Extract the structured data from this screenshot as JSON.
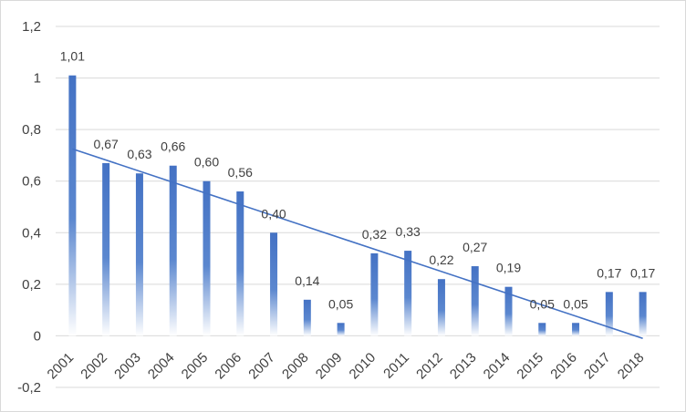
{
  "chart_data": {
    "type": "bar",
    "categories": [
      "2001",
      "2002",
      "2003",
      "2004",
      "2005",
      "2006",
      "2007",
      "2008",
      "2009",
      "2010",
      "2011",
      "2012",
      "2013",
      "2014",
      "2015",
      "2016",
      "2017",
      "2018"
    ],
    "values": [
      1.01,
      0.67,
      0.63,
      0.66,
      0.6,
      0.56,
      0.4,
      0.14,
      0.05,
      0.32,
      0.33,
      0.22,
      0.27,
      0.19,
      0.05,
      0.05,
      0.17,
      0.17
    ],
    "data_labels": [
      "1,01",
      "0,67",
      "0,63",
      "0,66",
      "0,60",
      "0,56",
      "0,40",
      "0,14",
      "0,05",
      "0,32",
      "0,33",
      "0,22",
      "0,27",
      "0,19",
      "0,05",
      "0,05",
      "0,17",
      "0,17"
    ],
    "ylim": [
      -0.2,
      1.2
    ],
    "yticks": [
      -0.2,
      0,
      0.2,
      0.4,
      0.6,
      0.8,
      1,
      1.2
    ],
    "ytick_labels": [
      "-0,2",
      "0",
      "0,2",
      "0,4",
      "0,6",
      "0,8",
      "1",
      "1,2"
    ],
    "trendline": {
      "type": "linear",
      "start": [
        "2001",
        0.725
      ],
      "end": [
        "2018",
        -0.01
      ]
    },
    "bar_color": "#4472c4",
    "trend_color": "#4472c4",
    "grid": true,
    "grid_color": "#d9d9d9",
    "legend": false,
    "title": "",
    "xlabel": "",
    "ylabel": ""
  }
}
